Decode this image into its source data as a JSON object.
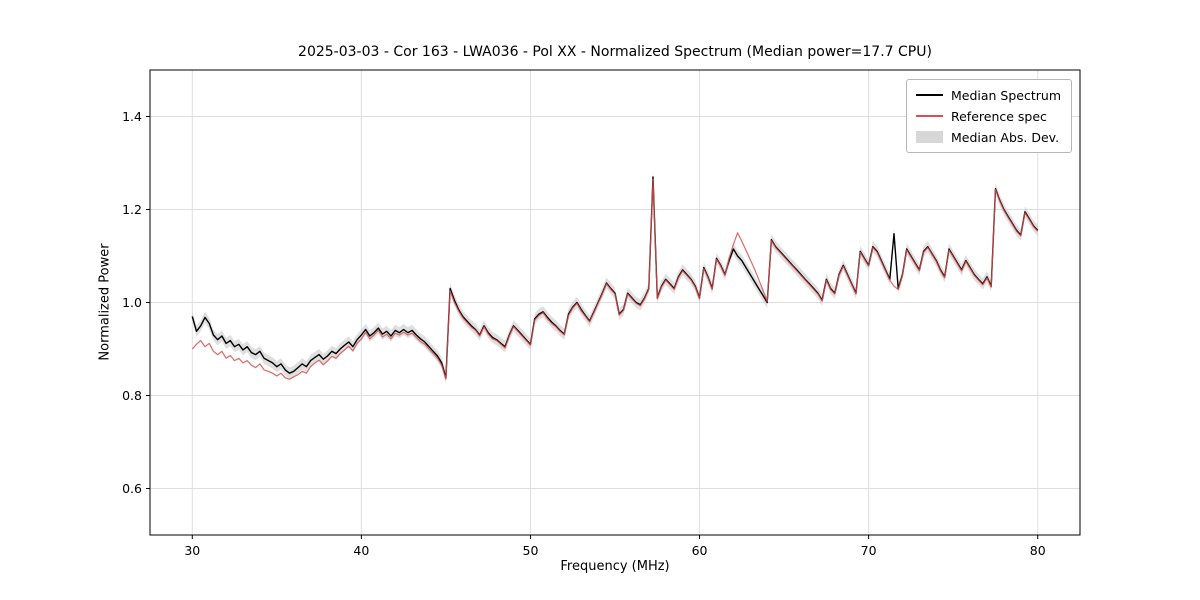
{
  "chart_data": {
    "type": "line",
    "title": "2025-03-03 - Cor 163 - LWA036 - Pol XX - Normalized Spectrum (Median power=17.7 CPU)",
    "xlabel": "Frequency (MHz)",
    "ylabel": "Normalized Power",
    "xlim": [
      27.5,
      82.5
    ],
    "ylim": [
      0.5,
      1.5
    ],
    "grid": true,
    "x_ticks": [
      30,
      40,
      50,
      60,
      70,
      80
    ],
    "x_tick_labels": [
      "30",
      "40",
      "50",
      "60",
      "70",
      "80"
    ],
    "y_ticks": [
      0.6,
      0.8,
      1.0,
      1.2,
      1.4
    ],
    "y_tick_labels": [
      "0.6",
      "0.8",
      "1.0",
      "1.2",
      "1.4"
    ],
    "colors": {
      "grid": "#dedede",
      "spine": "#000000"
    },
    "legend": {
      "position": "upper right",
      "entries": [
        {
          "label": "Median Spectrum",
          "type": "line"
        },
        {
          "label": "Reference spec",
          "type": "line"
        },
        {
          "label": "Median Abs. Dev.",
          "type": "patch"
        }
      ]
    },
    "x_start": 30,
    "x_step": 0.25,
    "band": {
      "name": "Median Abs. Dev.",
      "color": "#c9c9c9",
      "opacity": 0.6,
      "half_width": 0.012,
      "around": "Median Spectrum"
    },
    "series": [
      {
        "name": "Median Spectrum",
        "color": "#000000",
        "values": [
          0.97,
          0.938,
          0.95,
          0.968,
          0.955,
          0.93,
          0.92,
          0.928,
          0.912,
          0.918,
          0.905,
          0.91,
          0.898,
          0.905,
          0.892,
          0.888,
          0.895,
          0.88,
          0.875,
          0.87,
          0.862,
          0.868,
          0.855,
          0.848,
          0.852,
          0.86,
          0.868,
          0.862,
          0.875,
          0.882,
          0.888,
          0.878,
          0.885,
          0.895,
          0.89,
          0.9,
          0.908,
          0.915,
          0.905,
          0.92,
          0.93,
          0.942,
          0.928,
          0.935,
          0.945,
          0.932,
          0.938,
          0.928,
          0.94,
          0.935,
          0.942,
          0.935,
          0.94,
          0.93,
          0.922,
          0.915,
          0.905,
          0.895,
          0.885,
          0.87,
          0.838,
          1.03,
          1.005,
          0.985,
          0.97,
          0.96,
          0.95,
          0.942,
          0.93,
          0.95,
          0.935,
          0.925,
          0.92,
          0.912,
          0.905,
          0.93,
          0.95,
          0.94,
          0.93,
          0.92,
          0.91,
          0.965,
          0.975,
          0.98,
          0.968,
          0.958,
          0.95,
          0.94,
          0.932,
          0.975,
          0.99,
          1.0,
          0.985,
          0.972,
          0.96,
          0.98,
          1.0,
          1.02,
          1.042,
          1.03,
          1.02,
          0.975,
          0.985,
          1.02,
          1.01,
          1.0,
          0.995,
          1.01,
          1.03,
          1.27,
          1.01,
          1.035,
          1.05,
          1.04,
          1.03,
          1.055,
          1.07,
          1.06,
          1.05,
          1.035,
          1.01,
          1.075,
          1.055,
          1.03,
          1.095,
          1.08,
          1.06,
          1.09,
          1.115,
          1.1,
          1.09,
          1.075,
          1.06,
          1.045,
          1.03,
          1.015,
          1.0,
          1.135,
          1.12,
          1.11,
          1.1,
          1.09,
          1.08,
          1.07,
          1.06,
          1.05,
          1.04,
          1.03,
          1.02,
          1.005,
          1.05,
          1.03,
          1.02,
          1.06,
          1.08,
          1.06,
          1.04,
          1.02,
          1.11,
          1.095,
          1.08,
          1.12,
          1.11,
          1.09,
          1.07,
          1.05,
          1.148,
          1.03,
          1.06,
          1.115,
          1.1,
          1.085,
          1.07,
          1.11,
          1.12,
          1.105,
          1.09,
          1.07,
          1.055,
          1.115,
          1.1,
          1.085,
          1.07,
          1.09,
          1.075,
          1.06,
          1.05,
          1.04,
          1.055,
          1.035,
          1.245,
          1.22,
          1.2,
          1.185,
          1.17,
          1.155,
          1.145,
          1.195,
          1.18,
          1.165,
          1.155
        ]
      },
      {
        "name": "Reference spec",
        "color": "#d94f4f",
        "values": [
          0.9,
          0.91,
          0.918,
          0.905,
          0.912,
          0.895,
          0.888,
          0.895,
          0.88,
          0.886,
          0.875,
          0.88,
          0.87,
          0.875,
          0.865,
          0.86,
          0.868,
          0.855,
          0.852,
          0.848,
          0.842,
          0.848,
          0.838,
          0.835,
          0.84,
          0.845,
          0.852,
          0.848,
          0.862,
          0.87,
          0.876,
          0.866,
          0.874,
          0.884,
          0.88,
          0.89,
          0.898,
          0.906,
          0.896,
          0.912,
          0.922,
          0.936,
          0.922,
          0.93,
          0.94,
          0.926,
          0.932,
          0.922,
          0.934,
          0.93,
          0.936,
          0.93,
          0.934,
          0.925,
          0.916,
          0.91,
          0.9,
          0.89,
          0.88,
          0.865,
          0.835,
          1.025,
          1.0,
          0.982,
          0.967,
          0.957,
          0.947,
          0.94,
          0.928,
          0.948,
          0.932,
          0.922,
          0.918,
          0.91,
          0.902,
          0.928,
          0.948,
          0.938,
          0.928,
          0.918,
          0.908,
          0.962,
          0.972,
          0.978,
          0.965,
          0.955,
          0.948,
          0.938,
          0.93,
          0.972,
          0.988,
          0.998,
          0.982,
          0.97,
          0.958,
          0.978,
          0.998,
          1.018,
          1.04,
          1.028,
          1.018,
          0.973,
          0.983,
          1.018,
          1.008,
          0.998,
          0.993,
          1.008,
          1.028,
          1.265,
          1.008,
          1.033,
          1.048,
          1.038,
          1.028,
          1.053,
          1.068,
          1.058,
          1.048,
          1.033,
          1.008,
          1.073,
          1.053,
          1.028,
          1.093,
          1.078,
          1.058,
          1.095,
          1.125,
          1.15,
          1.132,
          1.112,
          1.092,
          1.072,
          1.05,
          1.026,
          1.002,
          1.133,
          1.118,
          1.108,
          1.098,
          1.088,
          1.078,
          1.068,
          1.058,
          1.048,
          1.038,
          1.028,
          1.018,
          1.003,
          1.048,
          1.028,
          1.018,
          1.058,
          1.078,
          1.058,
          1.038,
          1.018,
          1.108,
          1.093,
          1.078,
          1.118,
          1.108,
          1.088,
          1.068,
          1.048,
          1.035,
          1.028,
          1.058,
          1.113,
          1.098,
          1.083,
          1.068,
          1.108,
          1.118,
          1.103,
          1.088,
          1.068,
          1.053,
          1.113,
          1.098,
          1.083,
          1.068,
          1.088,
          1.073,
          1.058,
          1.048,
          1.038,
          1.053,
          1.033,
          1.243,
          1.218,
          1.198,
          1.183,
          1.168,
          1.153,
          1.143,
          1.193,
          1.178,
          1.163,
          1.153
        ]
      }
    ]
  }
}
